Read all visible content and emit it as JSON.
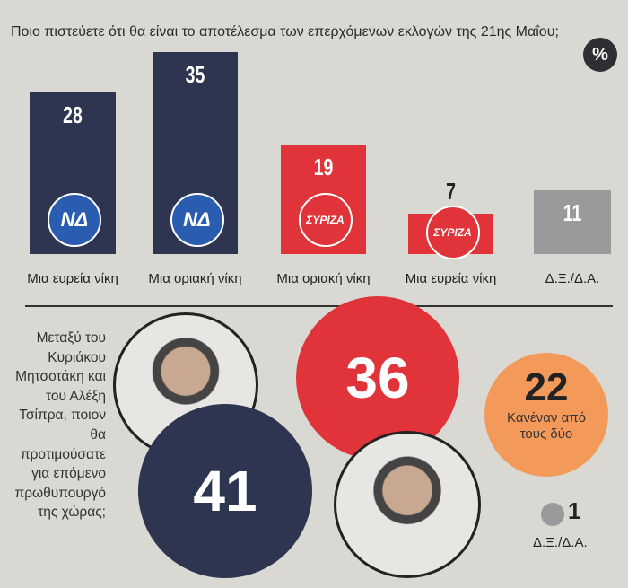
{
  "title": "Ποιο πιστεύετε ότι θα είναι το αποτέλεσμα των επερχόμενων εκλογών της 21ης Μαΐου;",
  "percent_badge": "%",
  "chart_data": [
    {
      "type": "bar",
      "title": "Ποιο πιστεύετε ότι θα είναι το αποτέλεσμα των επερχόμενων εκλογών της 21ης Μαΐου;",
      "unit": "%",
      "categories": [
        "Μια ευρεία νίκη",
        "Μια οριακή νίκη",
        "Μια οριακή νίκη",
        "Μια ευρεία νίκη",
        "Δ.Ξ./Δ.Α."
      ],
      "parties": [
        "ΝΔ",
        "ΝΔ",
        "ΣΥΡΙΖΑ",
        "ΣΥΡΙΖΑ",
        ""
      ],
      "values": [
        28,
        35,
        19,
        7,
        11
      ],
      "colors": [
        "#2d3550",
        "#2d3550",
        "#e0343a",
        "#e0343a",
        "#9a9a9c"
      ],
      "ylim": [
        0,
        35
      ]
    },
    {
      "type": "bubble",
      "title": "Μεταξύ του Κυριάκου Μητσοτάκη και του Αλέξη Τσίπρα, ποιον θα προτιμούσατε για επόμενο πρωθυπουργό της χώρας;",
      "items": [
        {
          "name": "Κυριάκος Μητσοτάκης",
          "value": 41,
          "color": "#2d3550"
        },
        {
          "name": "Αλέξης Τσίπρας",
          "value": 36,
          "color": "#e0343a"
        },
        {
          "name": "Κανέναν από τους δύο",
          "value": 22,
          "color": "#f39a5a"
        },
        {
          "name": "Δ.Ξ./Δ.Α.",
          "value": 1,
          "color": "#9a9a9c"
        }
      ]
    }
  ],
  "q2_lines": [
    "Μεταξύ του",
    "Κυριάκου",
    "Μητσοτάκη και",
    "του Αλέξη",
    "Τσίπρα, ποιον",
    "θα",
    "προτιμούσατε",
    "για επόμενο",
    "πρωθυπουργό",
    "της χώρας;"
  ]
}
